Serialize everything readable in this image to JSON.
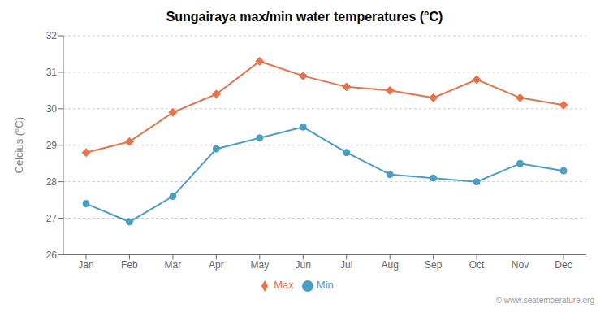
{
  "chart_data": {
    "type": "line",
    "title": "Sungairaya max/min water temperatures (°C)",
    "ylabel": "Celcius (°C)",
    "categories": [
      "Jan",
      "Feb",
      "Mar",
      "Apr",
      "May",
      "Jun",
      "Jul",
      "Aug",
      "Sep",
      "Oct",
      "Nov",
      "Dec"
    ],
    "series": [
      {
        "name": "Max",
        "color": "#e8724a",
        "marker": "diamond",
        "values": [
          28.8,
          29.1,
          29.9,
          30.4,
          31.3,
          30.9,
          30.6,
          30.5,
          30.3,
          30.8,
          30.3,
          30.1
        ]
      },
      {
        "name": "Min",
        "color": "#4a9ec4",
        "marker": "circle",
        "values": [
          27.4,
          26.9,
          27.6,
          28.9,
          29.2,
          29.5,
          28.8,
          28.2,
          28.1,
          28.0,
          28.5,
          28.3
        ]
      }
    ],
    "ylim": [
      26,
      32
    ],
    "yticks": [
      26,
      27,
      28,
      29,
      30,
      31,
      32
    ],
    "grid": true,
    "legend": "bottom",
    "annotations": [
      "© www.seatemperature.org"
    ]
  }
}
